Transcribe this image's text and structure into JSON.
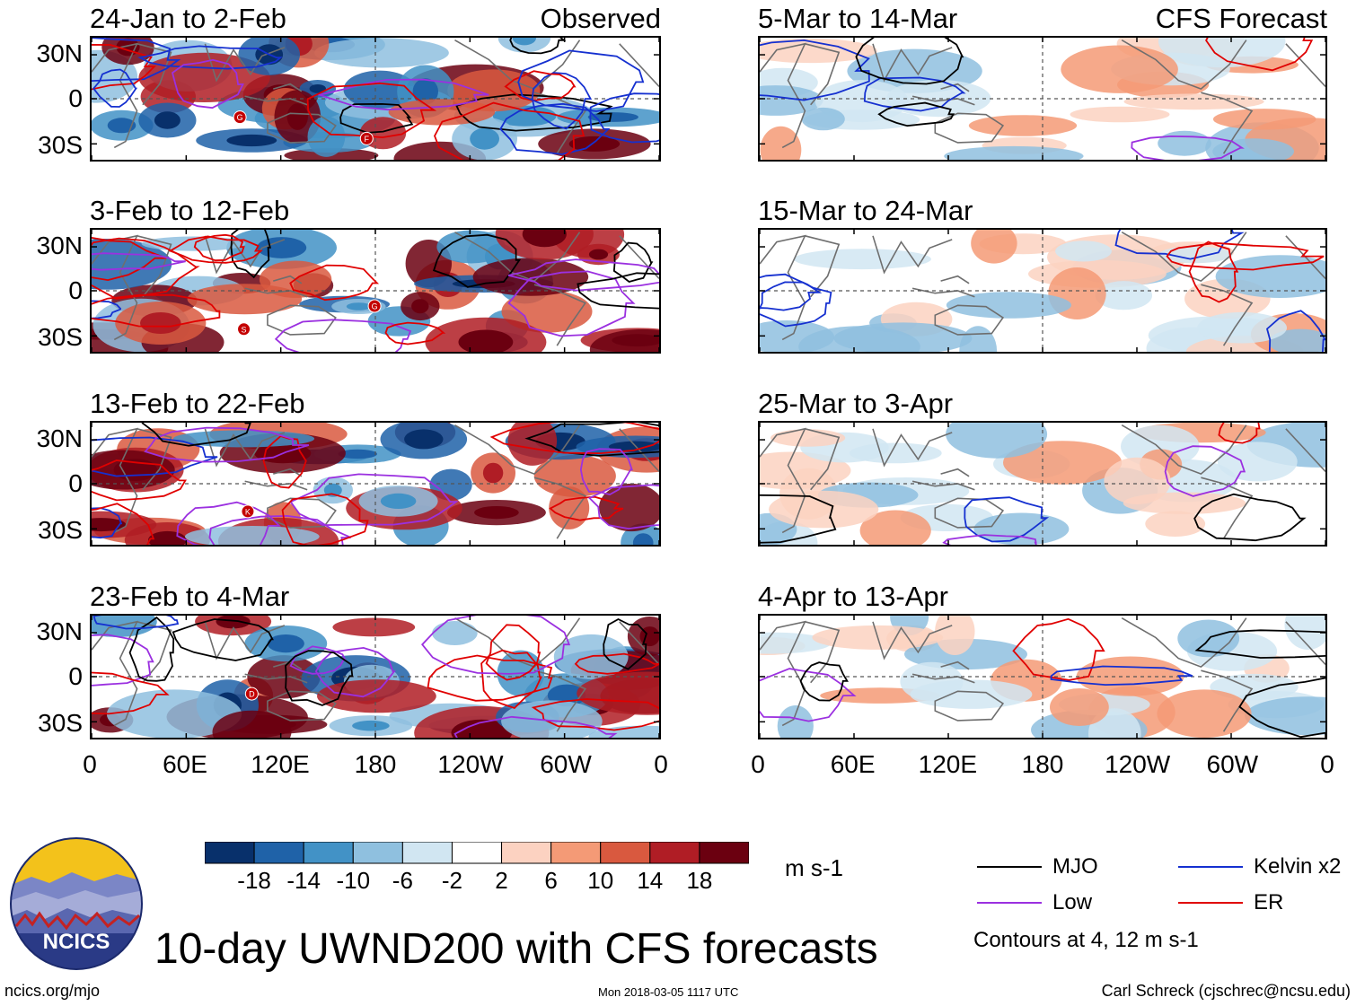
{
  "chart_data": {
    "type": "heatmap",
    "title": "10-day UWND200 with CFS forecasts",
    "colorbar": {
      "unit": "m s-1",
      "tick_labels": [
        "-18",
        "-14",
        "-10",
        "-6",
        "-2",
        "2",
        "6",
        "10",
        "14",
        "18"
      ],
      "colors": [
        "#08306b",
        "#1f62a8",
        "#4292c6",
        "#8fc0df",
        "#d1e6f2",
        "#ffffff",
        "#fcd2c1",
        "#f49a76",
        "#d9593f",
        "#b01d25",
        "#6b0010"
      ]
    },
    "x_tick_labels": [
      "0",
      "60E",
      "120E",
      "180",
      "120W",
      "60W",
      "0"
    ],
    "y_tick_labels": [
      "30N",
      "0",
      "30S"
    ],
    "legend": [
      {
        "label": "MJO",
        "color": "#000000"
      },
      {
        "label": "Kelvin x2",
        "color": "#1530d0"
      },
      {
        "label": "Low",
        "color": "#9b30e0"
      },
      {
        "label": "ER",
        "color": "#e00000"
      }
    ],
    "contour_note": "Contours at 4, 12 m s-1",
    "observed_label": "Observed",
    "forecast_label": "CFS Forecast",
    "panels": [
      {
        "period": "24-Jan to 2-Feb",
        "source": "Observed",
        "markers": [
          "G",
          "F"
        ]
      },
      {
        "period": "3-Feb to 12-Feb",
        "source": "Observed",
        "markers": [
          "S",
          "G"
        ]
      },
      {
        "period": "13-Feb to 22-Feb",
        "source": "Observed",
        "markers": [
          "K"
        ]
      },
      {
        "period": "23-Feb to 4-Mar",
        "source": "Observed",
        "markers": [
          "D"
        ]
      },
      {
        "period": "5-Mar to 14-Mar",
        "source": "CFS Forecast",
        "markers": []
      },
      {
        "period": "15-Mar to 24-Mar",
        "source": "CFS Forecast",
        "markers": []
      },
      {
        "period": "25-Mar to 3-Apr",
        "source": "CFS Forecast",
        "markers": []
      },
      {
        "period": "4-Apr to 13-Apr",
        "source": "CFS Forecast",
        "markers": []
      }
    ]
  },
  "logo": {
    "text": "NCICS"
  },
  "footer": {
    "left": "ncics.org/mjo",
    "center": "Mon 2018-03-05 1117 UTC",
    "right": "Carl Schreck (cjschrec@ncsu.edu)"
  }
}
